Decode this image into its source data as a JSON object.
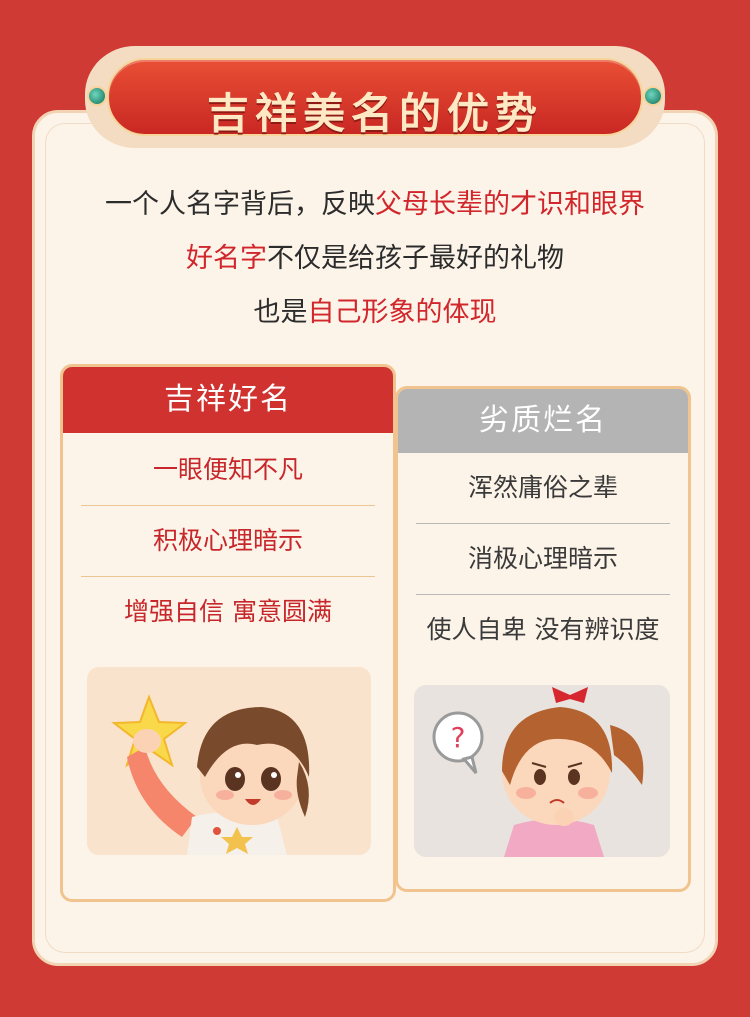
{
  "banner": {
    "title": "吉祥美名的优势"
  },
  "intro": {
    "line1_a": "一个人名字背后，反映",
    "line1_b": "父母长辈的才识和眼界",
    "line2_a": "好名字",
    "line2_b": "不仅是给孩子最好的礼物",
    "line3_a": "也是",
    "line3_b": "自己形象的体现"
  },
  "good": {
    "header": "吉祥好名",
    "items": [
      "一眼便知不凡",
      "积极心理暗示",
      "增强自信 寓意圆满"
    ]
  },
  "bad": {
    "header": "劣质烂名",
    "items": [
      "浑然庸俗之辈",
      "消极心理暗示",
      "使人自卑 没有辨识度"
    ]
  },
  "illustrations": {
    "good": "happy-boy-with-star",
    "bad": "confused-girl-with-question-mark",
    "question_mark": "?"
  },
  "colors": {
    "background": "#d03a35",
    "panel": "#fdf4e9",
    "accent_red": "#d1262b",
    "grey_header": "#b4b4b4"
  }
}
